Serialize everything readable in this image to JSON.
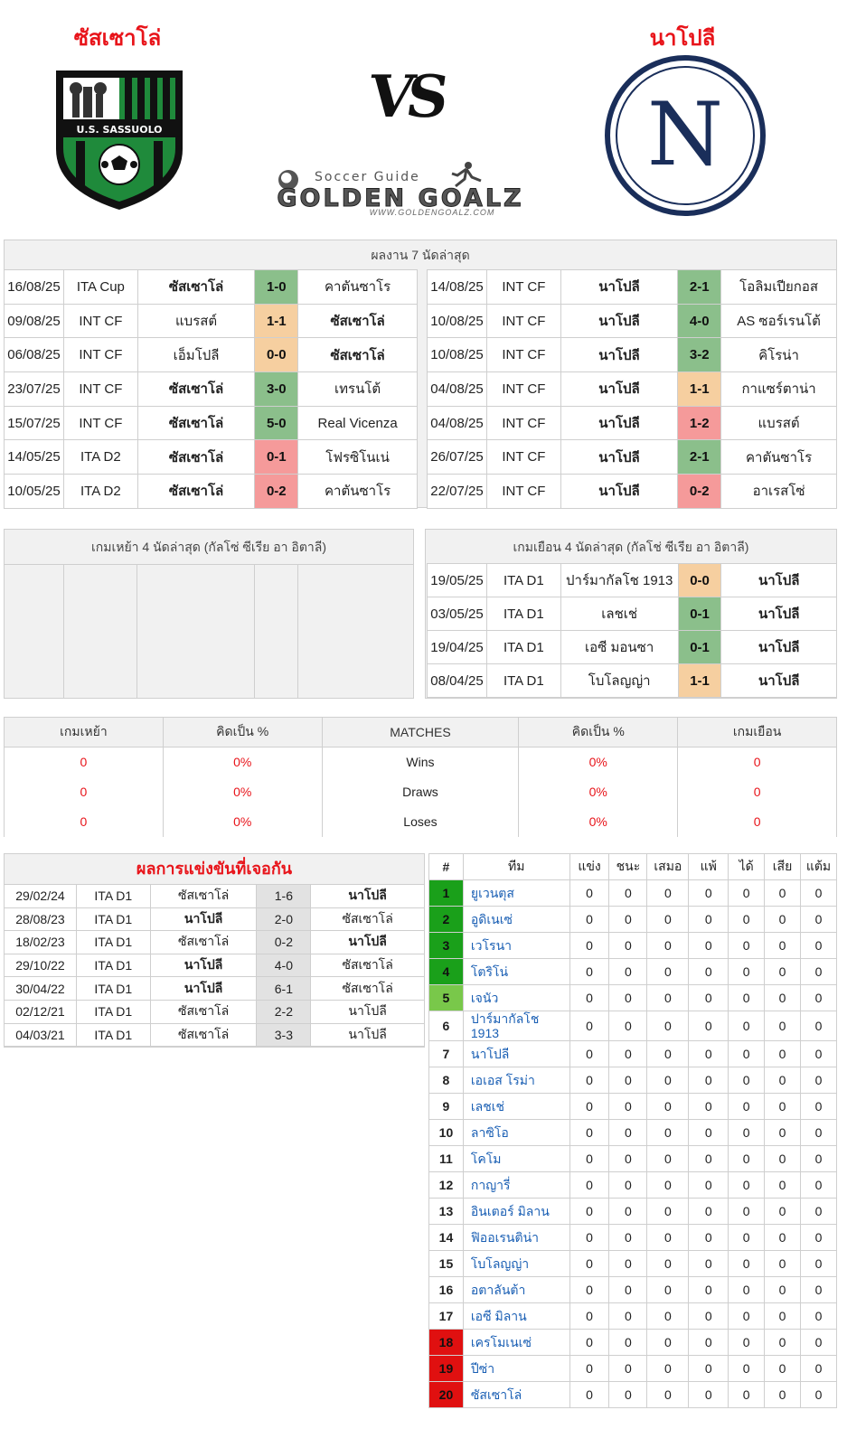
{
  "header": {
    "home_team": "ซัสเซาโล่",
    "away_team": "นาโปลี",
    "vs": "VS",
    "brand_small": "Soccer Guide",
    "brand_big": "GOLDEN GOALZ",
    "brand_url": "WWW.GOLDENGOALZ.COM",
    "home_logo_text": "U.S. SASSUOLO",
    "away_logo_letter": "N"
  },
  "colors": {
    "win": "#8bbf8b",
    "draw": "#f6cfa0",
    "loss": "#f59a9a",
    "red": "#e8141a",
    "green": "#1f8a3b"
  },
  "last7": {
    "title": "ผลงาน 7 นัดล่าสุด",
    "home": [
      {
        "date": "16/08/25",
        "comp": "ITA Cup",
        "home": "ซัสเซาโล่",
        "score": "1-0",
        "away": "คาตันซาโร",
        "res": "win",
        "bold": "home"
      },
      {
        "date": "09/08/25",
        "comp": "INT CF",
        "home": "แบรสต์",
        "score": "1-1",
        "away": "ซัสเซาโล่",
        "res": "draw",
        "bold": "away"
      },
      {
        "date": "06/08/25",
        "comp": "INT CF",
        "home": "เอ็มโปลี",
        "score": "0-0",
        "away": "ซัสเซาโล่",
        "res": "draw",
        "bold": "away"
      },
      {
        "date": "23/07/25",
        "comp": "INT CF",
        "home": "ซัสเซาโล่",
        "score": "3-0",
        "away": "เทรนโต้",
        "res": "win",
        "bold": "home"
      },
      {
        "date": "15/07/25",
        "comp": "INT CF",
        "home": "ซัสเซาโล่",
        "score": "5-0",
        "away": "Real Vicenza",
        "res": "win",
        "bold": "home"
      },
      {
        "date": "14/05/25",
        "comp": "ITA D2",
        "home": "ซัสเซาโล่",
        "score": "0-1",
        "away": "โฟรซิโนเน่",
        "res": "loss",
        "bold": "home"
      },
      {
        "date": "10/05/25",
        "comp": "ITA D2",
        "home": "ซัสเซาโล่",
        "score": "0-2",
        "away": "คาตันซาโร",
        "res": "loss",
        "bold": "home"
      }
    ],
    "away": [
      {
        "date": "14/08/25",
        "comp": "INT CF",
        "home": "นาโปลี",
        "score": "2-1",
        "away": "โอลิมเปียกอส",
        "res": "win",
        "bold": "home"
      },
      {
        "date": "10/08/25",
        "comp": "INT CF",
        "home": "นาโปลี",
        "score": "4-0",
        "away": "AS ซอร์เรนโต้",
        "res": "win",
        "bold": "home"
      },
      {
        "date": "10/08/25",
        "comp": "INT CF",
        "home": "นาโปลี",
        "score": "3-2",
        "away": "คิโรน่า",
        "res": "win",
        "bold": "home"
      },
      {
        "date": "04/08/25",
        "comp": "INT CF",
        "home": "นาโปลี",
        "score": "1-1",
        "away": "กาแซร์ตาน่า",
        "res": "draw",
        "bold": "home"
      },
      {
        "date": "04/08/25",
        "comp": "INT CF",
        "home": "นาโปลี",
        "score": "1-2",
        "away": "แบรสต์",
        "res": "loss",
        "bold": "home"
      },
      {
        "date": "26/07/25",
        "comp": "INT CF",
        "home": "นาโปลี",
        "score": "2-1",
        "away": "คาตันซาโร",
        "res": "win",
        "bold": "home"
      },
      {
        "date": "22/07/25",
        "comp": "INT CF",
        "home": "นาโปลี",
        "score": "0-2",
        "away": "อาเรสโซ่",
        "res": "loss",
        "bold": "home"
      }
    ]
  },
  "last4": {
    "home_title": "เกมเหย้า 4 นัดล่าสุด (กัลโซ่ ซีเรีย อา อิตาลี)",
    "away_title": "เกมเยือน 4 นัดล่าสุด (กัลโช่ ซีเรีย อา อิตาลี)",
    "away": [
      {
        "date": "19/05/25",
        "comp": "ITA D1",
        "home": "ปาร์มากัลโช 1913",
        "score": "0-0",
        "away": "นาโปลี",
        "res": "draw"
      },
      {
        "date": "03/05/25",
        "comp": "ITA D1",
        "home": "เลชเช่",
        "score": "0-1",
        "away": "นาโปลี",
        "res": "win"
      },
      {
        "date": "19/04/25",
        "comp": "ITA D1",
        "home": "เอซี มอนซา",
        "score": "0-1",
        "away": "นาโปลี",
        "res": "win"
      },
      {
        "date": "08/04/25",
        "comp": "ITA D1",
        "home": "โบโลญญ่า",
        "score": "1-1",
        "away": "นาโปลี",
        "res": "draw"
      }
    ]
  },
  "stats": {
    "headers": [
      "เกมเหย้า",
      "คิดเป็น %",
      "MATCHES",
      "คิดเป็น %",
      "เกมเยือน"
    ],
    "rows": [
      {
        "home": "0",
        "home_pct": "0%",
        "label": "Wins",
        "away_pct": "0%",
        "away": "0"
      },
      {
        "home": "0",
        "home_pct": "0%",
        "label": "Draws",
        "away_pct": "0%",
        "away": "0"
      },
      {
        "home": "0",
        "home_pct": "0%",
        "label": "Loses",
        "away_pct": "0%",
        "away": "0"
      }
    ]
  },
  "h2h": {
    "title": "ผลการแข่งขันที่เจอกัน",
    "rows": [
      {
        "date": "29/02/24",
        "comp": "ITA D1",
        "home": "ซัสเซาโล่",
        "score": "1-6",
        "away": "นาโปลี",
        "bold": "away"
      },
      {
        "date": "28/08/23",
        "comp": "ITA D1",
        "home": "นาโปลี",
        "score": "2-0",
        "away": "ซัสเซาโล่",
        "bold": "home"
      },
      {
        "date": "18/02/23",
        "comp": "ITA D1",
        "home": "ซัสเซาโล่",
        "score": "0-2",
        "away": "นาโปลี",
        "bold": "away"
      },
      {
        "date": "29/10/22",
        "comp": "ITA D1",
        "home": "นาโปลี",
        "score": "4-0",
        "away": "ซัสเซาโล่",
        "bold": "home"
      },
      {
        "date": "30/04/22",
        "comp": "ITA D1",
        "home": "นาโปลี",
        "score": "6-1",
        "away": "ซัสเซาโล่",
        "bold": "home"
      },
      {
        "date": "02/12/21",
        "comp": "ITA D1",
        "home": "ซัสเซาโล่",
        "score": "2-2",
        "away": "นาโปลี",
        "bold": ""
      },
      {
        "date": "04/03/21",
        "comp": "ITA D1",
        "home": "ซัสเซาโล่",
        "score": "3-3",
        "away": "นาโปลี",
        "bold": ""
      }
    ]
  },
  "standings": {
    "headers": [
      "#",
      "ทีม",
      "แข่ง",
      "ชนะ",
      "เสมอ",
      "แพ้",
      "ได้",
      "เสีย",
      "แต้ม"
    ],
    "rows": [
      {
        "pos": "1",
        "team": "ยูเวนตุส",
        "zone": "green"
      },
      {
        "pos": "2",
        "team": "อูดิเนเซ่",
        "zone": "green"
      },
      {
        "pos": "3",
        "team": "เวโรนา",
        "zone": "green"
      },
      {
        "pos": "4",
        "team": "โตริโน่",
        "zone": "green"
      },
      {
        "pos": "5",
        "team": "เจนัว",
        "zone": "lightgreen"
      },
      {
        "pos": "6",
        "team": "ปาร์มากัลโช 1913",
        "zone": ""
      },
      {
        "pos": "7",
        "team": "นาโปลี",
        "zone": ""
      },
      {
        "pos": "8",
        "team": "เอเอส โรม่า",
        "zone": ""
      },
      {
        "pos": "9",
        "team": "เลชเช่",
        "zone": ""
      },
      {
        "pos": "10",
        "team": "ลาซิโอ",
        "zone": ""
      },
      {
        "pos": "11",
        "team": "โคโม",
        "zone": ""
      },
      {
        "pos": "12",
        "team": "กาญารี่",
        "zone": ""
      },
      {
        "pos": "13",
        "team": "อินเตอร์ มิลาน",
        "zone": ""
      },
      {
        "pos": "14",
        "team": "ฟิออเรนติน่า",
        "zone": ""
      },
      {
        "pos": "15",
        "team": "โบโลญญ่า",
        "zone": ""
      },
      {
        "pos": "16",
        "team": "อตาลันต้า",
        "zone": ""
      },
      {
        "pos": "17",
        "team": "เอซี มิลาน",
        "zone": ""
      },
      {
        "pos": "18",
        "team": "เครโมเนเซ่",
        "zone": "red"
      },
      {
        "pos": "19",
        "team": "ปีซ่า",
        "zone": "red"
      },
      {
        "pos": "20",
        "team": "ซัสเซาโล่",
        "zone": "red"
      }
    ],
    "zero": "0"
  }
}
